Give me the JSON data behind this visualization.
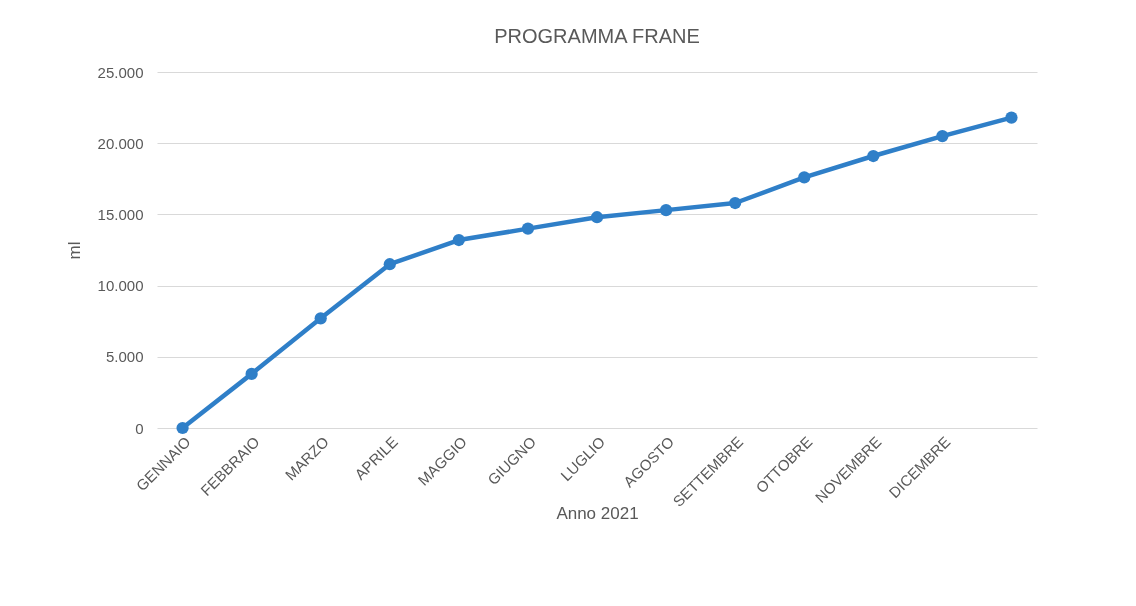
{
  "chart_data": {
    "type": "line",
    "title": "PROGRAMMA FRANE",
    "xlabel": "Anno 2021",
    "ylabel": "ml",
    "categories": [
      "GENNAIO",
      "FEBBRAIO",
      "MARZO",
      "APRILE",
      "MAGGIO",
      "GIUGNO",
      "LUGLIO",
      "AGOSTO",
      "SETTEMBRE",
      "OTTOBRE",
      "NOVEMBRE",
      "DICEMBRE",
      null
    ],
    "series": [
      {
        "color": "#2f7fc8",
        "values": [
          0,
          3800,
          7700,
          11500,
          13200,
          14000,
          14800,
          15300,
          15800,
          17600,
          19100,
          20500,
          21800
        ]
      }
    ],
    "ylim": [
      0,
      25000
    ],
    "yticks": [
      {
        "value": 0,
        "label": "0"
      },
      {
        "value": 5000,
        "label": "5.000"
      },
      {
        "value": 10000,
        "label": "10.000"
      },
      {
        "value": 15000,
        "label": "15.000"
      },
      {
        "value": 20000,
        "label": "20.000"
      },
      {
        "value": 25000,
        "label": "25.000"
      }
    ],
    "grid": "y",
    "marker": "circle",
    "line_style": "solid"
  }
}
